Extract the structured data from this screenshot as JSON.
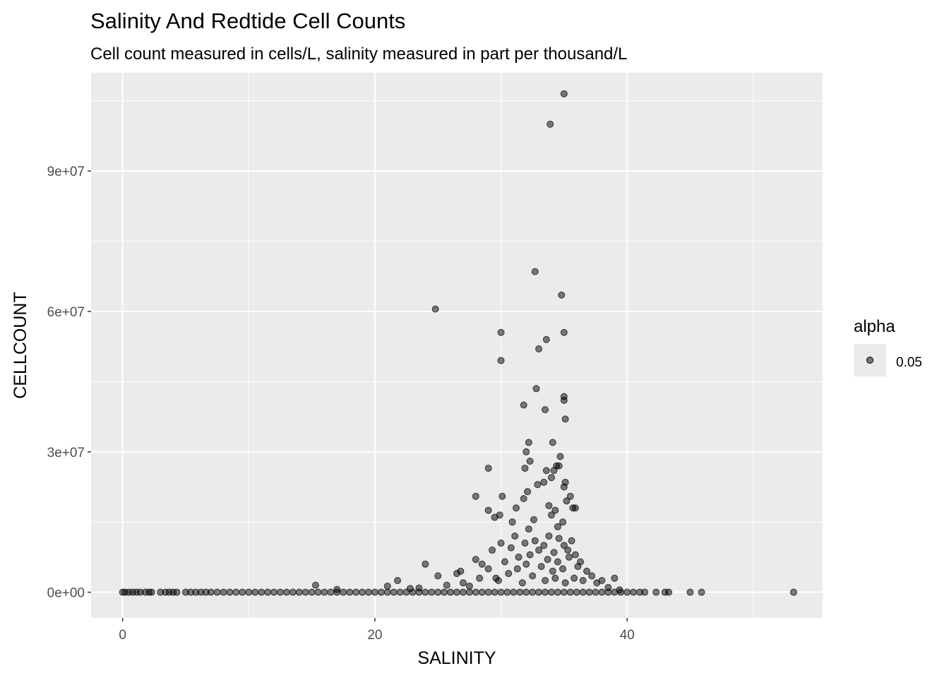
{
  "chart_data": {
    "type": "scatter",
    "title": "Salinity And Redtide Cell Counts",
    "subtitle": "Cell count measured in cells/L, salinity measured in part per thousand/L",
    "xlabel": "SALINITY",
    "ylabel": "CELLCOUNT",
    "xlim": [
      -2.5,
      55.5
    ],
    "ylim": [
      -5500000,
      111000000
    ],
    "x_ticks": [
      0,
      20,
      40
    ],
    "x_tick_labels": [
      "0",
      "20",
      "40"
    ],
    "y_ticks": [
      0,
      30000000,
      60000000,
      90000000
    ],
    "y_tick_labels": [
      "0e+00",
      "3e+07",
      "6e+07",
      "9e+07"
    ],
    "grid": true,
    "legend": {
      "title": "alpha",
      "entries": [
        "0.05"
      ],
      "position": "right"
    },
    "colors": {
      "panel_bg": "#ebebeb",
      "grid": "#ffffff",
      "point_fill": "#000000",
      "point_stroke": "#000000"
    },
    "points": [
      [
        0.0,
        0
      ],
      [
        0.2,
        0
      ],
      [
        0.5,
        0
      ],
      [
        0.8,
        0
      ],
      [
        1.1,
        0
      ],
      [
        1.4,
        0
      ],
      [
        1.8,
        0
      ],
      [
        2.1,
        0
      ],
      [
        2.3,
        0
      ],
      [
        3.0,
        0
      ],
      [
        3.4,
        0
      ],
      [
        3.7,
        0
      ],
      [
        4.0,
        0
      ],
      [
        4.3,
        0
      ],
      [
        5.0,
        0
      ],
      [
        5.4,
        0
      ],
      [
        5.8,
        0
      ],
      [
        6.2,
        0
      ],
      [
        6.6,
        0
      ],
      [
        7.0,
        0
      ],
      [
        7.5,
        0
      ],
      [
        8.0,
        0
      ],
      [
        8.5,
        0
      ],
      [
        9.0,
        0
      ],
      [
        9.5,
        0
      ],
      [
        10.0,
        0
      ],
      [
        10.5,
        0
      ],
      [
        11.0,
        0
      ],
      [
        11.5,
        0
      ],
      [
        12.0,
        0
      ],
      [
        12.5,
        0
      ],
      [
        13.0,
        0
      ],
      [
        13.5,
        0
      ],
      [
        14.0,
        0
      ],
      [
        14.5,
        0
      ],
      [
        15.0,
        0
      ],
      [
        15.5,
        0
      ],
      [
        16.0,
        0
      ],
      [
        16.5,
        0
      ],
      [
        17.0,
        0
      ],
      [
        17.5,
        0
      ],
      [
        18.0,
        0
      ],
      [
        18.5,
        0
      ],
      [
        19.0,
        0
      ],
      [
        19.5,
        0
      ],
      [
        20.0,
        0
      ],
      [
        20.5,
        0
      ],
      [
        21.0,
        0
      ],
      [
        21.5,
        0
      ],
      [
        22.0,
        0
      ],
      [
        22.5,
        0
      ],
      [
        23.0,
        0
      ],
      [
        23.5,
        0
      ],
      [
        24.0,
        0
      ],
      [
        24.5,
        0
      ],
      [
        25.0,
        0
      ],
      [
        25.5,
        0
      ],
      [
        26.0,
        0
      ],
      [
        26.5,
        0
      ],
      [
        27.0,
        0
      ],
      [
        27.5,
        0
      ],
      [
        28.0,
        0
      ],
      [
        28.5,
        0
      ],
      [
        29.0,
        0
      ],
      [
        29.5,
        0
      ],
      [
        30.0,
        0
      ],
      [
        30.5,
        0
      ],
      [
        31.0,
        0
      ],
      [
        31.5,
        0
      ],
      [
        32.0,
        0
      ],
      [
        32.5,
        0
      ],
      [
        33.0,
        0
      ],
      [
        33.5,
        0
      ],
      [
        34.0,
        0
      ],
      [
        34.5,
        0
      ],
      [
        35.0,
        0
      ],
      [
        35.5,
        0
      ],
      [
        36.0,
        0
      ],
      [
        36.5,
        0
      ],
      [
        37.0,
        0
      ],
      [
        37.5,
        0
      ],
      [
        38.0,
        0
      ],
      [
        38.5,
        0
      ],
      [
        39.0,
        0
      ],
      [
        39.5,
        0
      ],
      [
        40.0,
        0
      ],
      [
        40.5,
        0
      ],
      [
        41.0,
        0
      ],
      [
        41.4,
        0
      ],
      [
        42.3,
        0
      ],
      [
        43.0,
        0
      ],
      [
        43.3,
        0
      ],
      [
        45.0,
        0
      ],
      [
        45.9,
        0
      ],
      [
        53.2,
        0
      ],
      [
        15.3,
        1500000
      ],
      [
        17.0,
        600000
      ],
      [
        21.0,
        1300000
      ],
      [
        21.8,
        2500000
      ],
      [
        22.8,
        800000
      ],
      [
        23.5,
        900000
      ],
      [
        24.0,
        6000000
      ],
      [
        25.0,
        3500000
      ],
      [
        25.7,
        1500000
      ],
      [
        26.5,
        4000000
      ],
      [
        27.0,
        2000000
      ],
      [
        27.5,
        1300000
      ],
      [
        28.0,
        7000000
      ],
      [
        28.5,
        6000000
      ],
      [
        29.0,
        5000000
      ],
      [
        29.3,
        9000000
      ],
      [
        29.6,
        3000000
      ],
      [
        30.0,
        10500000
      ],
      [
        30.3,
        6500000
      ],
      [
        30.8,
        9500000
      ],
      [
        31.1,
        12000000
      ],
      [
        31.4,
        7500000
      ],
      [
        31.9,
        10500000
      ],
      [
        32.3,
        8000000
      ],
      [
        32.7,
        11000000
      ],
      [
        33.0,
        9000000
      ],
      [
        33.4,
        10000000
      ],
      [
        33.8,
        12000000
      ],
      [
        34.2,
        8500000
      ],
      [
        34.6,
        11500000
      ],
      [
        35.0,
        10000000
      ],
      [
        35.3,
        9000000
      ],
      [
        35.6,
        11000000
      ],
      [
        35.9,
        8000000
      ],
      [
        36.3,
        6500000
      ],
      [
        36.8,
        4500000
      ],
      [
        37.2,
        3500000
      ],
      [
        37.6,
        2000000
      ],
      [
        38.0,
        2500000
      ],
      [
        38.5,
        1000000
      ],
      [
        39.0,
        3000000
      ],
      [
        39.4,
        500000
      ],
      [
        26.8,
        4500000
      ],
      [
        28.3,
        3000000
      ],
      [
        29.8,
        2500000
      ],
      [
        30.6,
        4000000
      ],
      [
        31.3,
        5000000
      ],
      [
        32.0,
        6000000
      ],
      [
        32.5,
        3500000
      ],
      [
        33.2,
        5500000
      ],
      [
        33.7,
        7000000
      ],
      [
        34.1,
        4500000
      ],
      [
        34.5,
        6500000
      ],
      [
        34.9,
        5000000
      ],
      [
        35.4,
        7500000
      ],
      [
        35.8,
        3000000
      ],
      [
        36.1,
        5500000
      ],
      [
        36.5,
        2500000
      ],
      [
        31.7,
        2000000
      ],
      [
        33.5,
        2500000
      ],
      [
        34.3,
        3000000
      ],
      [
        35.1,
        2000000
      ],
      [
        29.0,
        17500000
      ],
      [
        29.5,
        16000000
      ],
      [
        29.9,
        16500000
      ],
      [
        30.9,
        15000000
      ],
      [
        31.2,
        18000000
      ],
      [
        31.8,
        20000000
      ],
      [
        32.1,
        21500000
      ],
      [
        32.2,
        13500000
      ],
      [
        32.6,
        15500000
      ],
      [
        32.9,
        23000000
      ],
      [
        33.4,
        23500000
      ],
      [
        33.8,
        18500000
      ],
      [
        34.0,
        24500000
      ],
      [
        34.0,
        16500000
      ],
      [
        34.3,
        17500000
      ],
      [
        34.5,
        14000000
      ],
      [
        34.9,
        15000000
      ],
      [
        35.2,
        19500000
      ],
      [
        35.5,
        20500000
      ],
      [
        35.7,
        18000000
      ],
      [
        35.9,
        18000000
      ],
      [
        30.1,
        20500000
      ],
      [
        32.0,
        30000000
      ],
      [
        32.3,
        28000000
      ],
      [
        31.9,
        26500000
      ],
      [
        33.6,
        26000000
      ],
      [
        34.2,
        26000000
      ],
      [
        34.4,
        27000000
      ],
      [
        34.6,
        27000000
      ],
      [
        34.1,
        32000000
      ],
      [
        34.7,
        29000000
      ],
      [
        35.0,
        22500000
      ],
      [
        35.1,
        23500000
      ],
      [
        29.0,
        26500000
      ],
      [
        28.0,
        20500000
      ],
      [
        31.8,
        40000000
      ],
      [
        32.2,
        32000000
      ],
      [
        32.8,
        43500000
      ],
      [
        33.5,
        39000000
      ],
      [
        35.1,
        37000000
      ],
      [
        35.0,
        41000000
      ],
      [
        35.0,
        41800000
      ],
      [
        24.8,
        60500000
      ],
      [
        30.0,
        55500000
      ],
      [
        30.0,
        49500000
      ],
      [
        33.0,
        52000000
      ],
      [
        33.6,
        54000000
      ],
      [
        35.0,
        55500000
      ],
      [
        34.8,
        63500000
      ],
      [
        32.7,
        68500000
      ],
      [
        33.9,
        100000000
      ],
      [
        35.0,
        106500000
      ]
    ]
  }
}
